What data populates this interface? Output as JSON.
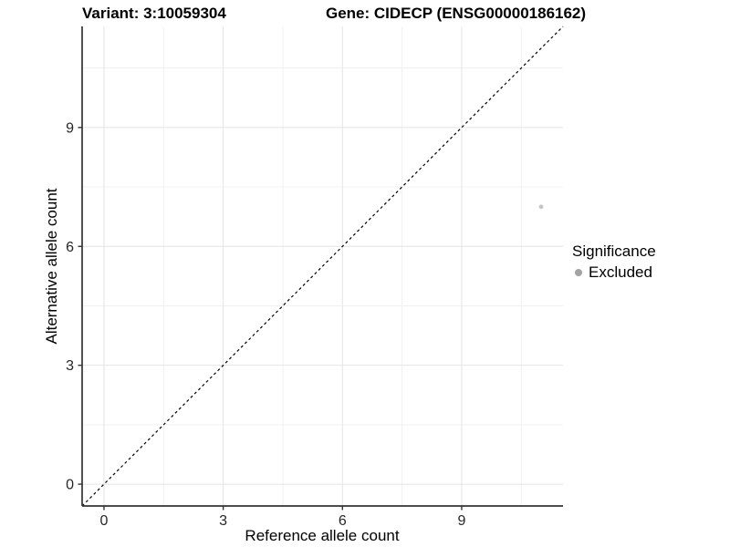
{
  "figure": {
    "title_left": "Variant: 3:10059304",
    "title_right": "Gene: CIDECP (ENSG00000186162)"
  },
  "legend": {
    "title": "Significance",
    "items": [
      {
        "label": "Excluded",
        "key_color": "#a3a3a3"
      }
    ]
  },
  "chart_data": {
    "type": "scatter",
    "title": "Variant: 3:10059304",
    "subtitle": "Gene: CIDECP (ENSG00000186162)",
    "xlabel": "Reference allele count",
    "ylabel": "Alternative allele count",
    "xlim": [
      -0.55,
      11.55
    ],
    "ylim": [
      -0.55,
      11.55
    ],
    "x_ticks": [
      0,
      3,
      6,
      9
    ],
    "y_ticks": [
      0,
      3,
      6,
      9
    ],
    "x_minor_ticks": [
      1.5,
      4.5,
      7.5,
      10.5
    ],
    "y_minor_ticks": [
      1.5,
      4.5,
      7.5,
      10.5
    ],
    "grid": true,
    "legend_position": "right",
    "series": [
      {
        "name": "Excluded",
        "color": "#c4c4c4",
        "points": [
          {
            "x": 11,
            "y": 7
          }
        ]
      }
    ],
    "reference_line": {
      "type": "identity",
      "from": -0.55,
      "to": 11.55,
      "style": "dashed",
      "color": "#000000"
    },
    "colors": {
      "grid_major": "#e4e4e4",
      "grid_minor": "#f1f1f1",
      "axis_line": "#333333",
      "tick_mark": "#333333",
      "tick_label": "#262626",
      "background": "#ffffff"
    }
  }
}
